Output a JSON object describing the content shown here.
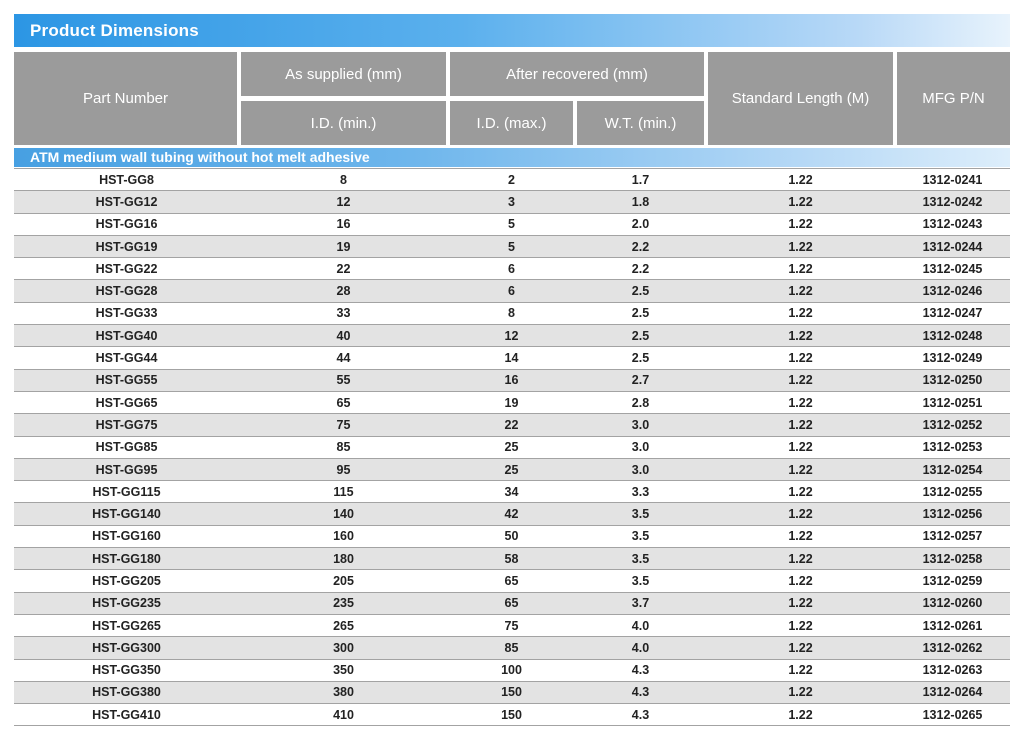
{
  "title": "Product Dimensions",
  "colors": {
    "accent_blue": "#2c96e4",
    "band_blue": "#47a0e2",
    "header_gray": "#9b9b9b",
    "stripe_gray": "#e3e3e3",
    "row_border": "#a3a3a3"
  },
  "table": {
    "headers": {
      "part_number": "Part Number",
      "as_supplied": "As supplied (mm)",
      "after_recovered": "After recovered (mm)",
      "id_min": "I.D. (min.)",
      "id_max": "I.D. (max.)",
      "wt_min": "W.T. (min.)",
      "standard_length": "Standard Length (M)",
      "mfg_pn": "MFG P/N"
    },
    "section_label": "ATM medium wall tubing without hot melt adhesive",
    "rows": [
      [
        "HST-GG8",
        "8",
        "2",
        "1.7",
        "1.22",
        "1312-0241"
      ],
      [
        "HST-GG12",
        "12",
        "3",
        "1.8",
        "1.22",
        "1312-0242"
      ],
      [
        "HST-GG16",
        "16",
        "5",
        "2.0",
        "1.22",
        "1312-0243"
      ],
      [
        "HST-GG19",
        "19",
        "5",
        "2.2",
        "1.22",
        "1312-0244"
      ],
      [
        "HST-GG22",
        "22",
        "6",
        "2.2",
        "1.22",
        "1312-0245"
      ],
      [
        "HST-GG28",
        "28",
        "6",
        "2.5",
        "1.22",
        "1312-0246"
      ],
      [
        "HST-GG33",
        "33",
        "8",
        "2.5",
        "1.22",
        "1312-0247"
      ],
      [
        "HST-GG40",
        "40",
        "12",
        "2.5",
        "1.22",
        "1312-0248"
      ],
      [
        "HST-GG44",
        "44",
        "14",
        "2.5",
        "1.22",
        "1312-0249"
      ],
      [
        "HST-GG55",
        "55",
        "16",
        "2.7",
        "1.22",
        "1312-0250"
      ],
      [
        "HST-GG65",
        "65",
        "19",
        "2.8",
        "1.22",
        "1312-0251"
      ],
      [
        "HST-GG75",
        "75",
        "22",
        "3.0",
        "1.22",
        "1312-0252"
      ],
      [
        "HST-GG85",
        "85",
        "25",
        "3.0",
        "1.22",
        "1312-0253"
      ],
      [
        "HST-GG95",
        "95",
        "25",
        "3.0",
        "1.22",
        "1312-0254"
      ],
      [
        "HST-GG115",
        "115",
        "34",
        "3.3",
        "1.22",
        "1312-0255"
      ],
      [
        "HST-GG140",
        "140",
        "42",
        "3.5",
        "1.22",
        "1312-0256"
      ],
      [
        "HST-GG160",
        "160",
        "50",
        "3.5",
        "1.22",
        "1312-0257"
      ],
      [
        "HST-GG180",
        "180",
        "58",
        "3.5",
        "1.22",
        "1312-0258"
      ],
      [
        "HST-GG205",
        "205",
        "65",
        "3.5",
        "1.22",
        "1312-0259"
      ],
      [
        "HST-GG235",
        "235",
        "65",
        "3.7",
        "1.22",
        "1312-0260"
      ],
      [
        "HST-GG265",
        "265",
        "75",
        "4.0",
        "1.22",
        "1312-0261"
      ],
      [
        "HST-GG300",
        "300",
        "85",
        "4.0",
        "1.22",
        "1312-0262"
      ],
      [
        "HST-GG350",
        "350",
        "100",
        "4.3",
        "1.22",
        "1312-0263"
      ],
      [
        "HST-GG380",
        "380",
        "150",
        "4.3",
        "1.22",
        "1312-0264"
      ],
      [
        "HST-GG410",
        "410",
        "150",
        "4.3",
        "1.22",
        "1312-0265"
      ]
    ]
  }
}
